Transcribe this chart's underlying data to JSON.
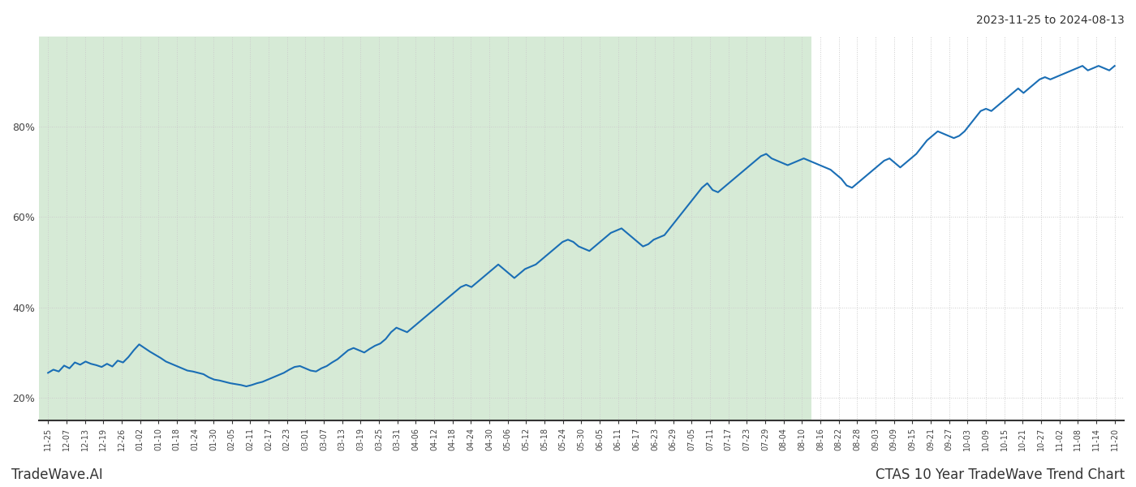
{
  "title_right": "2023-11-25 to 2024-08-13",
  "footer_left": "TradeWave.AI",
  "footer_right": "CTAS 10 Year TradeWave Trend Chart",
  "background_color": "#ffffff",
  "shaded_region_color": "#d6ead6",
  "line_color": "#1a6eb5",
  "line_width": 1.5,
  "ylim": [
    15,
    100
  ],
  "yticks": [
    20,
    40,
    60,
    80
  ],
  "grid_color": "#cccccc",
  "shaded_x_start_label": "11-25",
  "shaded_x_end_label": "08-10",
  "x_labels": [
    "11-25",
    "12-07",
    "12-13",
    "12-19",
    "12-26",
    "01-02",
    "01-10",
    "01-18",
    "01-24",
    "01-30",
    "02-05",
    "02-11",
    "02-17",
    "02-23",
    "03-01",
    "03-07",
    "03-13",
    "03-19",
    "03-25",
    "03-31",
    "04-06",
    "04-12",
    "04-18",
    "04-24",
    "04-30",
    "05-06",
    "05-12",
    "05-18",
    "05-24",
    "05-30",
    "06-05",
    "06-11",
    "06-17",
    "06-23",
    "06-29",
    "07-05",
    "07-11",
    "07-17",
    "07-23",
    "07-29",
    "08-04",
    "08-10",
    "08-16",
    "08-22",
    "08-28",
    "09-03",
    "09-09",
    "09-15",
    "09-21",
    "09-27",
    "10-03",
    "10-09",
    "10-15",
    "10-21",
    "10-27",
    "11-02",
    "11-08",
    "11-14",
    "11-20"
  ],
  "y_values": [
    25.5,
    26.2,
    25.8,
    27.1,
    26.5,
    27.8,
    27.3,
    28.0,
    27.5,
    27.2,
    26.8,
    27.5,
    26.9,
    28.2,
    27.8,
    29.0,
    30.5,
    31.8,
    31.0,
    30.2,
    29.5,
    28.8,
    28.0,
    27.5,
    27.0,
    26.5,
    26.0,
    25.8,
    25.5,
    25.2,
    24.5,
    24.0,
    23.8,
    23.5,
    23.2,
    23.0,
    22.8,
    22.5,
    22.8,
    23.2,
    23.5,
    24.0,
    24.5,
    25.0,
    25.5,
    26.2,
    26.8,
    27.0,
    26.5,
    26.0,
    25.8,
    26.5,
    27.0,
    27.8,
    28.5,
    29.5,
    30.5,
    31.0,
    30.5,
    30.0,
    30.8,
    31.5,
    32.0,
    33.0,
    34.5,
    35.5,
    35.0,
    34.5,
    35.5,
    36.5,
    37.5,
    38.5,
    39.5,
    40.5,
    41.5,
    42.5,
    43.5,
    44.5,
    45.0,
    44.5,
    45.5,
    46.5,
    47.5,
    48.5,
    49.5,
    48.5,
    47.5,
    46.5,
    47.5,
    48.5,
    49.0,
    49.5,
    50.5,
    51.5,
    52.5,
    53.5,
    54.5,
    55.0,
    54.5,
    53.5,
    53.0,
    52.5,
    53.5,
    54.5,
    55.5,
    56.5,
    57.0,
    57.5,
    56.5,
    55.5,
    54.5,
    53.5,
    54.0,
    55.0,
    55.5,
    56.0,
    57.5,
    59.0,
    60.5,
    62.0,
    63.5,
    65.0,
    66.5,
    67.5,
    66.0,
    65.5,
    66.5,
    67.5,
    68.5,
    69.5,
    70.5,
    71.5,
    72.5,
    73.5,
    74.0,
    73.0,
    72.5,
    72.0,
    71.5,
    72.0,
    72.5,
    73.0,
    72.5,
    72.0,
    71.5,
    71.0,
    70.5,
    69.5,
    68.5,
    67.0,
    66.5,
    67.5,
    68.5,
    69.5,
    70.5,
    71.5,
    72.5,
    73.0,
    72.0,
    71.0,
    72.0,
    73.0,
    74.0,
    75.5,
    77.0,
    78.0,
    79.0,
    78.5,
    78.0,
    77.5,
    78.0,
    79.0,
    80.5,
    82.0,
    83.5,
    84.0,
    83.5,
    84.5,
    85.5,
    86.5,
    87.5,
    88.5,
    87.5,
    88.5,
    89.5,
    90.5,
    91.0,
    90.5,
    91.0,
    91.5,
    92.0,
    92.5,
    93.0,
    93.5,
    92.5,
    93.0,
    93.5,
    93.0,
    92.5,
    93.5
  ]
}
